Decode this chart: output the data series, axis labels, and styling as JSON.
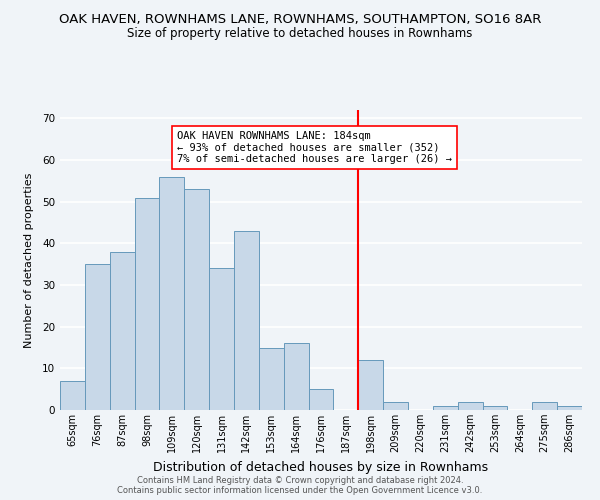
{
  "title": "OAK HAVEN, ROWNHAMS LANE, ROWNHAMS, SOUTHAMPTON, SO16 8AR",
  "subtitle": "Size of property relative to detached houses in Rownhams",
  "xlabel": "Distribution of detached houses by size in Rownhams",
  "ylabel": "Number of detached properties",
  "footer_line1": "Contains HM Land Registry data © Crown copyright and database right 2024.",
  "footer_line2": "Contains public sector information licensed under the Open Government Licence v3.0.",
  "bar_labels": [
    "65sqm",
    "76sqm",
    "87sqm",
    "98sqm",
    "109sqm",
    "120sqm",
    "131sqm",
    "142sqm",
    "153sqm",
    "164sqm",
    "176sqm",
    "187sqm",
    "198sqm",
    "209sqm",
    "220sqm",
    "231sqm",
    "242sqm",
    "253sqm",
    "264sqm",
    "275sqm",
    "286sqm"
  ],
  "bar_values": [
    7,
    35,
    38,
    51,
    56,
    53,
    34,
    43,
    15,
    16,
    5,
    0,
    12,
    2,
    0,
    1,
    2,
    1,
    0,
    2,
    1
  ],
  "bar_color": "#c8d8e8",
  "bar_edge_color": "#6699bb",
  "vline_x": 11.5,
  "vline_color": "red",
  "annotation_title": "OAK HAVEN ROWNHAMS LANE: 184sqm",
  "annotation_line1": "← 93% of detached houses are smaller (352)",
  "annotation_line2": "7% of semi-detached houses are larger (26) →",
  "ylim": [
    0,
    72
  ],
  "yticks": [
    0,
    10,
    20,
    30,
    40,
    50,
    60,
    70
  ],
  "background_color": "#f0f4f8",
  "grid_color": "#ffffff",
  "title_fontsize": 9.5,
  "subtitle_fontsize": 8.5,
  "xlabel_fontsize": 9,
  "ylabel_fontsize": 8
}
